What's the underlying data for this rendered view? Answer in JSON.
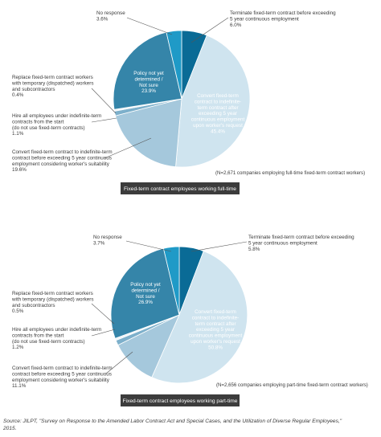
{
  "chart_data": [
    {
      "type": "pie",
      "note": "(N=2,671 companies employing full-time fixed-term contract workers)",
      "caption": "Fixed-term contract employees working full-time",
      "colors": [
        "#0a6b96",
        "#cfe4ef",
        "#a5c8dc",
        "#7db0cb",
        "#eef5f9",
        "#3585a9",
        "#1f9ac7"
      ],
      "slices": [
        {
          "label": "Terminate fixed-term contract before exceeding 5 year continuous employment",
          "value": 6.0,
          "value_label": "6.0%"
        },
        {
          "label": "Convert fixed-term contract to indefinite-term contract after exceeding 5 year continuous employment upon worker's request",
          "value": 45.4,
          "value_label": "45.4%"
        },
        {
          "label": "Convert fixed-term contract to indefinite-term contract before exceeding 5 year continuous employment considering worker's suitability",
          "value": 19.6,
          "value_label": "19.6%"
        },
        {
          "label": "Hire all employees under indefinite-term contracts from the start (do not use fixed-term contracts)",
          "value": 1.1,
          "value_label": "1.1%"
        },
        {
          "label": "Replace fixed-term contract workers with temporary (dispatched) workers and subcontractors",
          "value": 0.4,
          "value_label": "0.4%"
        },
        {
          "label": "Policy not yet determined / Not sure",
          "value": 23.9,
          "value_label": "23.9%"
        },
        {
          "label": "No response",
          "value": 3.6,
          "value_label": "3.6%"
        }
      ]
    },
    {
      "type": "pie",
      "note": "(N=2,656 companies employing part-time fixed-term contract workers)",
      "caption": "Fixed-term contract employees working part-time",
      "colors": [
        "#0a6b96",
        "#cfe4ef",
        "#a5c8dc",
        "#7db0cb",
        "#eef5f9",
        "#3585a9",
        "#1f9ac7"
      ],
      "slices": [
        {
          "label": "Terminate fixed-term contract before exceeding 5 year continuous employment",
          "value": 5.8,
          "value_label": "5.8%"
        },
        {
          "label": "Convert fixed-term contract to indefinite-term contract after exceeding 5 year continuous employment upon worker's request",
          "value": 50.8,
          "value_label": "50.8%"
        },
        {
          "label": "Convert fixed-term contract to indefinite-term contract before exceeding 5 year continuous employment considering worker's suitability",
          "value": 11.1,
          "value_label": "11.1%"
        },
        {
          "label": "Hire all employees under indefinite-term contracts from the start (do not use fixed-term contracts)",
          "value": 1.2,
          "value_label": "1.2%"
        },
        {
          "label": "Replace fixed-term contract workers with temporary (dispatched) workers and subcontractors",
          "value": 0.5,
          "value_label": "0.5%"
        },
        {
          "label": "Policy not yet determined / Not sure",
          "value": 26.9,
          "value_label": "26.9%"
        },
        {
          "label": "No response",
          "value": 3.7,
          "value_label": "3.7%"
        }
      ]
    }
  ],
  "source": "Source: JILPT, \"Survey on Response to the Amended Labor Contract Act and Special Cases, and the Utilization of Diverse Regular Employees,\" 2015."
}
